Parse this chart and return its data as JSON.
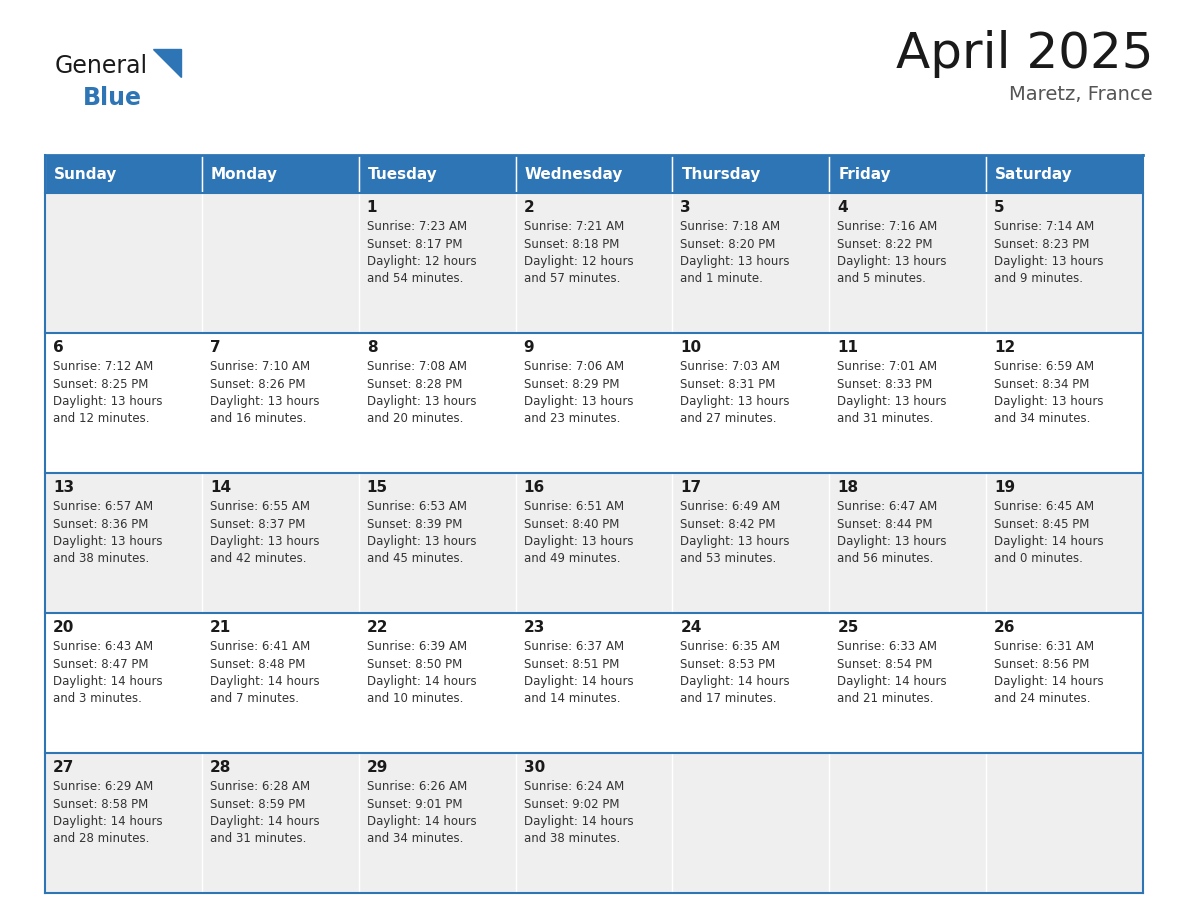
{
  "title": "April 2025",
  "subtitle": "Maretz, France",
  "header_color": "#2E75B6",
  "header_text_color": "#FFFFFF",
  "border_color": "#2E75B6",
  "days_of_week": [
    "Sunday",
    "Monday",
    "Tuesday",
    "Wednesday",
    "Thursday",
    "Friday",
    "Saturday"
  ],
  "calendar_data": [
    [
      {
        "day": "",
        "lines": []
      },
      {
        "day": "",
        "lines": []
      },
      {
        "day": "1",
        "lines": [
          "Sunrise: 7:23 AM",
          "Sunset: 8:17 PM",
          "Daylight: 12 hours",
          "and 54 minutes."
        ]
      },
      {
        "day": "2",
        "lines": [
          "Sunrise: 7:21 AM",
          "Sunset: 8:18 PM",
          "Daylight: 12 hours",
          "and 57 minutes."
        ]
      },
      {
        "day": "3",
        "lines": [
          "Sunrise: 7:18 AM",
          "Sunset: 8:20 PM",
          "Daylight: 13 hours",
          "and 1 minute."
        ]
      },
      {
        "day": "4",
        "lines": [
          "Sunrise: 7:16 AM",
          "Sunset: 8:22 PM",
          "Daylight: 13 hours",
          "and 5 minutes."
        ]
      },
      {
        "day": "5",
        "lines": [
          "Sunrise: 7:14 AM",
          "Sunset: 8:23 PM",
          "Daylight: 13 hours",
          "and 9 minutes."
        ]
      }
    ],
    [
      {
        "day": "6",
        "lines": [
          "Sunrise: 7:12 AM",
          "Sunset: 8:25 PM",
          "Daylight: 13 hours",
          "and 12 minutes."
        ]
      },
      {
        "day": "7",
        "lines": [
          "Sunrise: 7:10 AM",
          "Sunset: 8:26 PM",
          "Daylight: 13 hours",
          "and 16 minutes."
        ]
      },
      {
        "day": "8",
        "lines": [
          "Sunrise: 7:08 AM",
          "Sunset: 8:28 PM",
          "Daylight: 13 hours",
          "and 20 minutes."
        ]
      },
      {
        "day": "9",
        "lines": [
          "Sunrise: 7:06 AM",
          "Sunset: 8:29 PM",
          "Daylight: 13 hours",
          "and 23 minutes."
        ]
      },
      {
        "day": "10",
        "lines": [
          "Sunrise: 7:03 AM",
          "Sunset: 8:31 PM",
          "Daylight: 13 hours",
          "and 27 minutes."
        ]
      },
      {
        "day": "11",
        "lines": [
          "Sunrise: 7:01 AM",
          "Sunset: 8:33 PM",
          "Daylight: 13 hours",
          "and 31 minutes."
        ]
      },
      {
        "day": "12",
        "lines": [
          "Sunrise: 6:59 AM",
          "Sunset: 8:34 PM",
          "Daylight: 13 hours",
          "and 34 minutes."
        ]
      }
    ],
    [
      {
        "day": "13",
        "lines": [
          "Sunrise: 6:57 AM",
          "Sunset: 8:36 PM",
          "Daylight: 13 hours",
          "and 38 minutes."
        ]
      },
      {
        "day": "14",
        "lines": [
          "Sunrise: 6:55 AM",
          "Sunset: 8:37 PM",
          "Daylight: 13 hours",
          "and 42 minutes."
        ]
      },
      {
        "day": "15",
        "lines": [
          "Sunrise: 6:53 AM",
          "Sunset: 8:39 PM",
          "Daylight: 13 hours",
          "and 45 minutes."
        ]
      },
      {
        "day": "16",
        "lines": [
          "Sunrise: 6:51 AM",
          "Sunset: 8:40 PM",
          "Daylight: 13 hours",
          "and 49 minutes."
        ]
      },
      {
        "day": "17",
        "lines": [
          "Sunrise: 6:49 AM",
          "Sunset: 8:42 PM",
          "Daylight: 13 hours",
          "and 53 minutes."
        ]
      },
      {
        "day": "18",
        "lines": [
          "Sunrise: 6:47 AM",
          "Sunset: 8:44 PM",
          "Daylight: 13 hours",
          "and 56 minutes."
        ]
      },
      {
        "day": "19",
        "lines": [
          "Sunrise: 6:45 AM",
          "Sunset: 8:45 PM",
          "Daylight: 14 hours",
          "and 0 minutes."
        ]
      }
    ],
    [
      {
        "day": "20",
        "lines": [
          "Sunrise: 6:43 AM",
          "Sunset: 8:47 PM",
          "Daylight: 14 hours",
          "and 3 minutes."
        ]
      },
      {
        "day": "21",
        "lines": [
          "Sunrise: 6:41 AM",
          "Sunset: 8:48 PM",
          "Daylight: 14 hours",
          "and 7 minutes."
        ]
      },
      {
        "day": "22",
        "lines": [
          "Sunrise: 6:39 AM",
          "Sunset: 8:50 PM",
          "Daylight: 14 hours",
          "and 10 minutes."
        ]
      },
      {
        "day": "23",
        "lines": [
          "Sunrise: 6:37 AM",
          "Sunset: 8:51 PM",
          "Daylight: 14 hours",
          "and 14 minutes."
        ]
      },
      {
        "day": "24",
        "lines": [
          "Sunrise: 6:35 AM",
          "Sunset: 8:53 PM",
          "Daylight: 14 hours",
          "and 17 minutes."
        ]
      },
      {
        "day": "25",
        "lines": [
          "Sunrise: 6:33 AM",
          "Sunset: 8:54 PM",
          "Daylight: 14 hours",
          "and 21 minutes."
        ]
      },
      {
        "day": "26",
        "lines": [
          "Sunrise: 6:31 AM",
          "Sunset: 8:56 PM",
          "Daylight: 14 hours",
          "and 24 minutes."
        ]
      }
    ],
    [
      {
        "day": "27",
        "lines": [
          "Sunrise: 6:29 AM",
          "Sunset: 8:58 PM",
          "Daylight: 14 hours",
          "and 28 minutes."
        ]
      },
      {
        "day": "28",
        "lines": [
          "Sunrise: 6:28 AM",
          "Sunset: 8:59 PM",
          "Daylight: 14 hours",
          "and 31 minutes."
        ]
      },
      {
        "day": "29",
        "lines": [
          "Sunrise: 6:26 AM",
          "Sunset: 9:01 PM",
          "Daylight: 14 hours",
          "and 34 minutes."
        ]
      },
      {
        "day": "30",
        "lines": [
          "Sunrise: 6:24 AM",
          "Sunset: 9:02 PM",
          "Daylight: 14 hours",
          "and 38 minutes."
        ]
      },
      {
        "day": "",
        "lines": []
      },
      {
        "day": "",
        "lines": []
      },
      {
        "day": "",
        "lines": []
      }
    ]
  ],
  "row_bg_colors": [
    "#EFEFEF",
    "#FFFFFF",
    "#EFEFEF",
    "#FFFFFF",
    "#EFEFEF"
  ]
}
